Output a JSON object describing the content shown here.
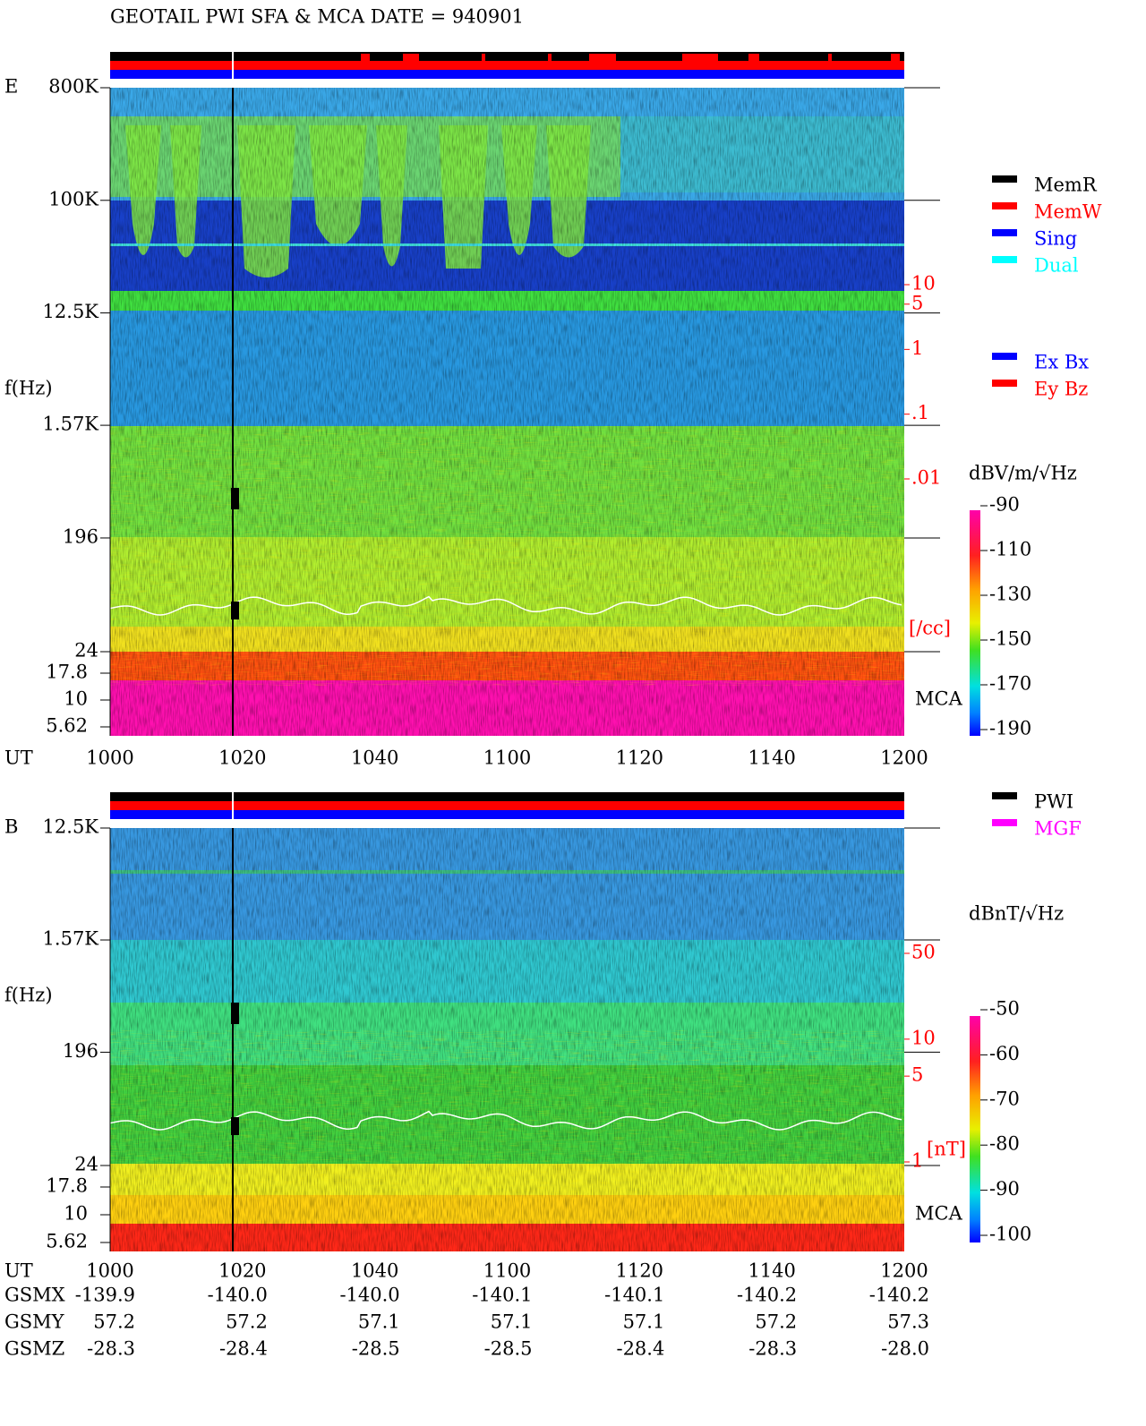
{
  "title": "GEOTAIL  PWI SFA & MCA   DATE = 940901",
  "panels": [
    {
      "label": "E",
      "ylabel": "f(Hz)",
      "yscale": "log",
      "ylim": [
        24,
        800000
      ],
      "yticks": [
        {
          "value": 800000,
          "label": "800K"
        },
        {
          "value": 100000,
          "label": "100K"
        },
        {
          "value": 12500,
          "label": "12.5K"
        },
        {
          "value": 1570,
          "label": "1.57K"
        },
        196,
        24
      ],
      "mca_label": "MCA",
      "mca_ylim": [
        17.8,
        5.62
      ],
      "mca_ticks": [
        17.8,
        10,
        5.62
      ],
      "right_label": "[/cc]",
      "right_scale": "log",
      "right_ylim": [
        10,
        0.01
      ],
      "right_ticks": [
        10,
        5,
        1,
        {
          "value": 0.1,
          "label": ".1"
        },
        {
          "value": 0.01,
          "label": ".01"
        }
      ],
      "colorbar": {
        "title": "dBV/m/√Hz",
        "lim": [
          -90,
          -190
        ],
        "ticks": [
          -90,
          -110,
          -130,
          -150,
          -170,
          -190
        ]
      },
      "legends": [
        [
          {
            "name": "MemR",
            "color": "#000000"
          },
          {
            "name": "MemW",
            "color": "#ff0000"
          },
          {
            "name": "Sing",
            "color": "#0000ff"
          },
          {
            "name": "Dual",
            "color": "#00ffff"
          }
        ],
        [
          {
            "name": "Ex Bx",
            "color": "#0000ff"
          },
          {
            "name": "Ey Bz",
            "color": "#ff0000"
          }
        ]
      ]
    },
    {
      "label": "B",
      "ylabel": "f(Hz)",
      "yscale": "log",
      "ylim": [
        24,
        12500
      ],
      "yticks": [
        {
          "value": 12500,
          "label": "12.5K"
        },
        {
          "value": 1570,
          "label": "1.57K"
        },
        196,
        24
      ],
      "mca_label": "MCA",
      "mca_ylim": [
        17.8,
        5.62
      ],
      "mca_ticks": [
        17.8,
        10,
        5.62
      ],
      "right_label": "[nT]",
      "right_scale": "log",
      "right_ylim": [
        50,
        1
      ],
      "right_ticks": [
        50,
        10,
        5,
        1
      ],
      "colorbar": {
        "title": "dBnT/√Hz",
        "lim": [
          -50,
          -100
        ],
        "ticks": [
          -50,
          -60,
          -70,
          -80,
          -90,
          -100
        ]
      },
      "legends": [
        [
          {
            "name": "PWI",
            "color": "#000000"
          },
          {
            "name": "MGF",
            "color": "#ff00ff"
          }
        ]
      ]
    }
  ],
  "x_label": "UT",
  "x_ticks": [
    "1000",
    "1020",
    "1040",
    "1100",
    "1120",
    "1140",
    "1200"
  ],
  "orbit": [
    {
      "name": "GSMX",
      "values": [
        "-139.9",
        "-140.0",
        "-140.0",
        "-140.1",
        "-140.1",
        "-140.2",
        "-140.2"
      ]
    },
    {
      "name": "GSMY",
      "values": [
        "57.2",
        "57.2",
        "57.1",
        "57.1",
        "57.1",
        "57.2",
        "57.3"
      ]
    },
    {
      "name": "GSMZ",
      "values": [
        "-28.3",
        "-28.4",
        "-28.5",
        "-28.5",
        "-28.4",
        "-28.3",
        "-28.0"
      ]
    }
  ]
}
